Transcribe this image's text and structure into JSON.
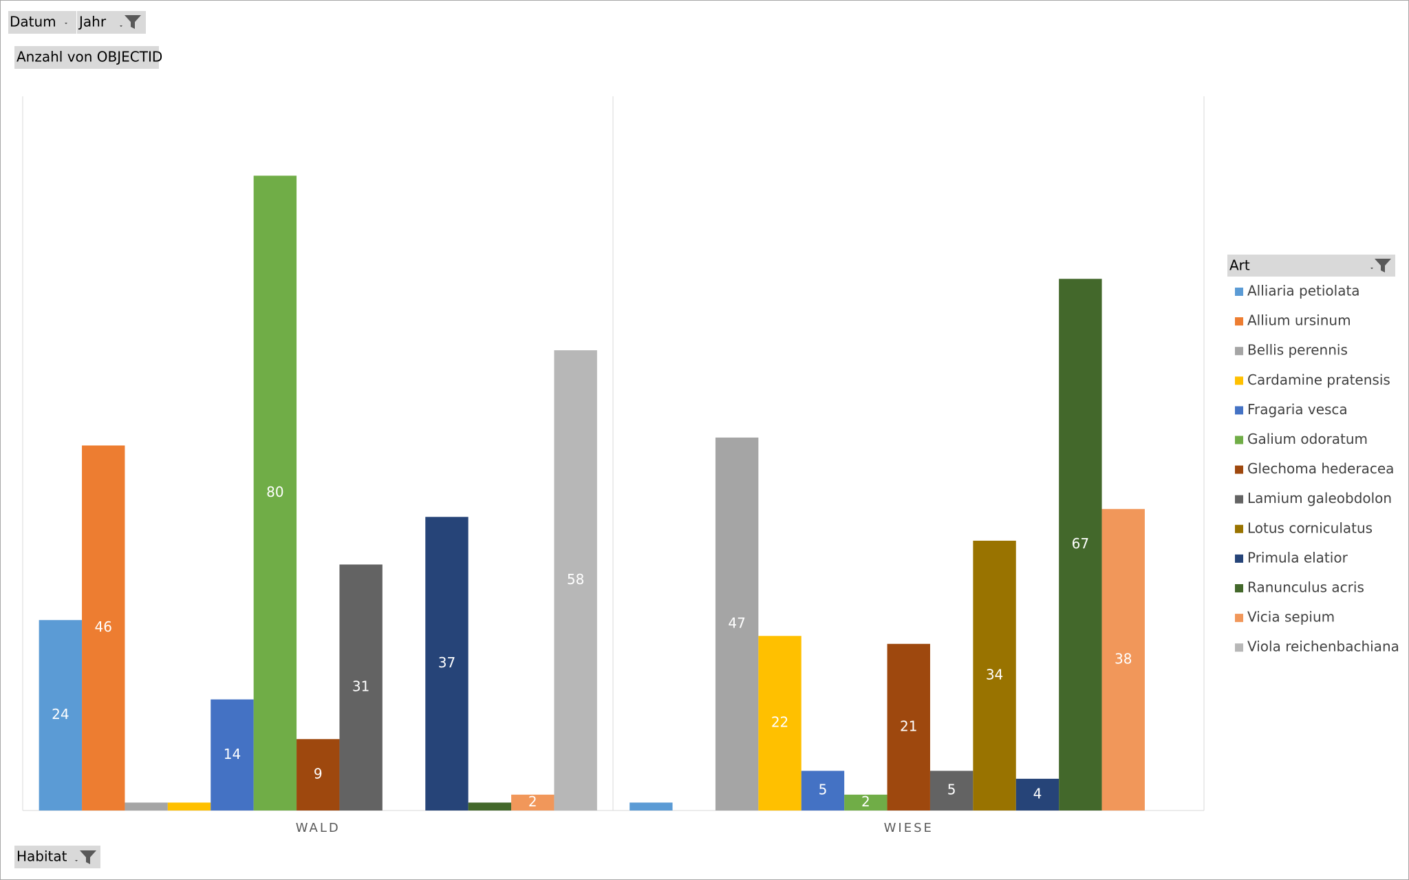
{
  "filters": {
    "date": "Datum",
    "year": "Jahr",
    "value_field": "Anzahl von OBJECTID",
    "habitat": "Habitat"
  },
  "chart_data": {
    "type": "bar",
    "categories": [
      "WALD",
      "WIESE"
    ],
    "legend_title": "Art",
    "legend": "right",
    "grid": false,
    "ylim": [
      0,
      90
    ],
    "series": [
      {
        "name": "Alliaria petiolata",
        "color": "#5b9bd5",
        "values": [
          24,
          1
        ],
        "value_labels": [
          "24",
          null
        ]
      },
      {
        "name": "Allium ursinum",
        "color": "#ed7d31",
        "values": [
          46,
          null
        ],
        "value_labels": [
          "46",
          null
        ]
      },
      {
        "name": "Bellis perennis",
        "color": "#a5a5a5",
        "values": [
          1,
          47
        ],
        "value_labels": [
          null,
          "47"
        ]
      },
      {
        "name": "Cardamine pratensis",
        "color": "#ffc000",
        "values": [
          1,
          22
        ],
        "value_labels": [
          null,
          "22"
        ]
      },
      {
        "name": "Fragaria vesca",
        "color": "#4472c4",
        "values": [
          14,
          5
        ],
        "value_labels": [
          "14",
          "5"
        ]
      },
      {
        "name": "Galium odoratum",
        "color": "#70ad47",
        "values": [
          80,
          2
        ],
        "value_labels": [
          "80",
          "2"
        ]
      },
      {
        "name": "Glechoma hederacea",
        "color": "#9e480e",
        "values": [
          9,
          21
        ],
        "value_labels": [
          "9",
          "21"
        ]
      },
      {
        "name": "Lamium galeobdolon",
        "color": "#636363",
        "values": [
          31,
          5
        ],
        "value_labels": [
          "31",
          "5"
        ]
      },
      {
        "name": "Lotus corniculatus",
        "color": "#997300",
        "values": [
          null,
          34
        ],
        "value_labels": [
          null,
          "34"
        ]
      },
      {
        "name": "Primula elatior",
        "color": "#264478",
        "values": [
          37,
          4
        ],
        "value_labels": [
          "37",
          "4"
        ]
      },
      {
        "name": "Ranunculus acris",
        "color": "#43682b",
        "values": [
          1,
          67
        ],
        "value_labels": [
          null,
          "67"
        ]
      },
      {
        "name": "Vicia sepium",
        "color": "#f1975a",
        "values": [
          2,
          38
        ],
        "value_labels": [
          "2",
          "38"
        ]
      },
      {
        "name": "Viola reichenbachiana",
        "color": "#b7b7b7",
        "values": [
          58,
          null
        ],
        "value_labels": [
          "58",
          null
        ]
      }
    ]
  }
}
